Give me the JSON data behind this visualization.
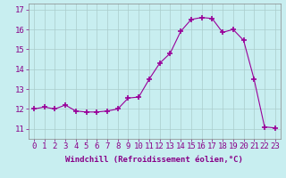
{
  "xlabel": "Windchill (Refroidissement éolien,°C)",
  "hours": [
    0,
    1,
    2,
    3,
    4,
    5,
    6,
    7,
    8,
    9,
    10,
    11,
    12,
    13,
    14,
    15,
    16,
    17,
    18,
    19,
    20,
    21,
    22,
    23
  ],
  "values": [
    12.0,
    12.1,
    12.0,
    12.2,
    11.9,
    11.85,
    11.85,
    11.9,
    12.0,
    12.55,
    12.6,
    13.5,
    14.3,
    14.8,
    15.9,
    16.5,
    16.6,
    16.55,
    15.85,
    16.0,
    15.45,
    13.5,
    11.1,
    11.05
  ],
  "line_color": "#990099",
  "marker_color": "#990099",
  "bg_color": "#c8eef0",
  "grid_color": "#aacccc",
  "ylim": [
    10.5,
    17.3
  ],
  "yticks": [
    11,
    12,
    13,
    14,
    15,
    16,
    17
  ],
  "xticks": [
    0,
    1,
    2,
    3,
    4,
    5,
    6,
    7,
    8,
    9,
    10,
    11,
    12,
    13,
    14,
    15,
    16,
    17,
    18,
    19,
    20,
    21,
    22,
    23
  ],
  "xlabel_fontsize": 6.5,
  "tick_fontsize": 6.5,
  "ylabel_fontsize": 6.5
}
